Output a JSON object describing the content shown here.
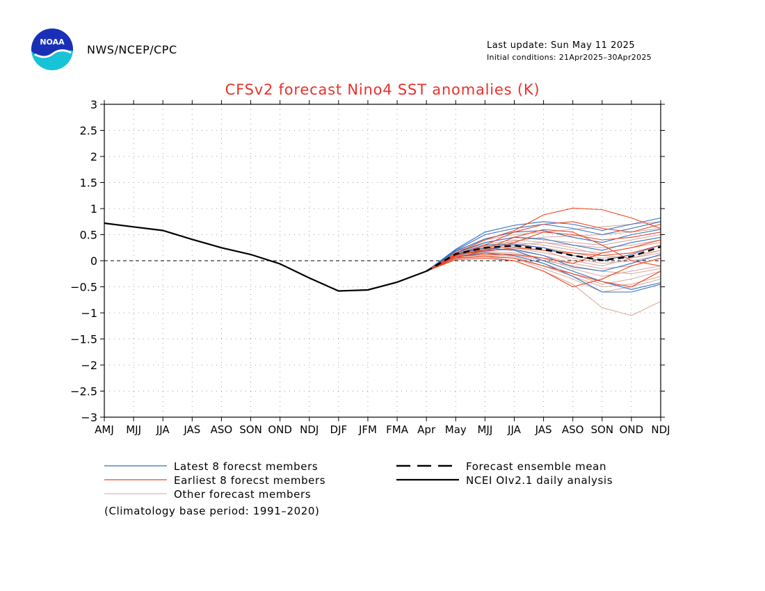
{
  "header": {
    "agency": "NWS/NCEP/CPC",
    "last_update": "Last update: Sun May 11 2025",
    "initial_conditions": "Initial conditions: 21Apr2025–30Apr2025",
    "logo_text": "NOAA"
  },
  "footnote": "(Climatology base period: 1991–2020)",
  "colors": {
    "title": "#e8312a",
    "latest": "#2f6fc0",
    "earliest": "#ee4422",
    "other": "#d9a59a",
    "observed": "#000000",
    "zero_line": "#000000",
    "grid": "#a0a0a0"
  },
  "chart_data": {
    "type": "line",
    "title": "CFSv2 forecast Nino4 SST anomalies (K)",
    "x_tick_labels": [
      "AMJ",
      "MJJ",
      "JJA",
      "JAS",
      "ASO",
      "SON",
      "OND",
      "NDJ",
      "DJF",
      "JFM",
      "FMA",
      "Apr",
      "May",
      "MJJ",
      "JJA",
      "JAS",
      "ASO",
      "SON",
      "OND",
      "NDJ"
    ],
    "y_ticks": [
      3,
      2.5,
      2,
      1.5,
      1,
      0.5,
      0,
      -0.5,
      -1,
      -1.5,
      -2,
      -2.5,
      -3
    ],
    "ylim": [
      -3,
      3
    ],
    "grid": true,
    "legend_placement": "below",
    "legend": {
      "latest": "Latest 8 forecst members",
      "earliest": "Earliest 8 forecst members",
      "other": "Other forecast members",
      "mean": "Forecast ensemble mean",
      "observed": "NCEI OIv2.1 daily analysis"
    },
    "observed": {
      "x": [
        0,
        1,
        2,
        3,
        4,
        5,
        6,
        7,
        8,
        9,
        10,
        11
      ],
      "values": [
        0.72,
        0.65,
        0.58,
        0.41,
        0.25,
        0.12,
        -0.06,
        -0.33,
        -0.58,
        -0.56,
        -0.41,
        -0.2
      ]
    },
    "ensemble_mean": {
      "x": [
        11,
        12,
        13,
        14,
        15,
        16,
        17,
        18,
        19
      ],
      "values": [
        -0.2,
        0.13,
        0.25,
        0.29,
        0.22,
        0.1,
        0.01,
        0.08,
        0.27
      ]
    },
    "forecast_x": [
      11,
      12,
      13,
      14,
      15,
      16,
      17,
      18,
      19
    ],
    "latest_members": [
      [
        -0.2,
        0.22,
        0.55,
        0.68,
        0.75,
        0.7,
        0.58,
        0.7,
        0.82
      ],
      [
        -0.2,
        0.2,
        0.5,
        0.62,
        0.7,
        0.62,
        0.5,
        0.62,
        0.75
      ],
      [
        -0.2,
        0.18,
        0.42,
        0.55,
        0.58,
        0.45,
        0.35,
        0.5,
        0.6
      ],
      [
        -0.2,
        0.15,
        0.35,
        0.45,
        0.42,
        0.3,
        0.2,
        0.35,
        0.45
      ],
      [
        -0.2,
        0.12,
        0.3,
        0.32,
        0.25,
        0.1,
        0.0,
        0.12,
        0.3
      ],
      [
        -0.2,
        0.1,
        0.2,
        0.22,
        0.1,
        -0.12,
        -0.2,
        -0.05,
        0.12
      ],
      [
        -0.2,
        0.08,
        0.15,
        0.1,
        -0.05,
        -0.3,
        -0.6,
        -0.6,
        -0.45
      ],
      [
        -0.2,
        0.12,
        0.25,
        0.2,
        0.0,
        -0.2,
        -0.4,
        -0.55,
        -0.42
      ]
    ],
    "earliest_members": [
      [
        -0.2,
        0.15,
        0.4,
        0.58,
        0.88,
        1.01,
        0.98,
        0.82,
        0.62
      ],
      [
        -0.2,
        0.1,
        0.3,
        0.55,
        0.7,
        0.75,
        0.62,
        0.55,
        0.7
      ],
      [
        -0.2,
        0.05,
        0.2,
        0.35,
        0.55,
        0.5,
        0.4,
        0.45,
        0.55
      ],
      [
        -0.2,
        0.12,
        0.18,
        0.25,
        0.2,
        0.15,
        0.1,
        0.15,
        0.3
      ],
      [
        -0.2,
        0.08,
        0.12,
        0.12,
        0.05,
        -0.05,
        0.15,
        0.25,
        0.4
      ],
      [
        -0.2,
        0.05,
        0.08,
        0.05,
        -0.1,
        -0.25,
        -0.4,
        -0.5,
        -0.2
      ],
      [
        -0.2,
        0.02,
        0.05,
        0.0,
        -0.2,
        -0.5,
        -0.35,
        -0.1,
        0.05
      ],
      [
        -0.2,
        0.1,
        0.22,
        0.45,
        0.6,
        0.55,
        0.3,
        0.0,
        -0.1
      ]
    ],
    "other_members": [
      [
        -0.2,
        0.2,
        0.4,
        0.5,
        0.55,
        0.6,
        0.65,
        0.7,
        0.75
      ],
      [
        -0.2,
        0.18,
        0.35,
        0.45,
        0.4,
        0.35,
        0.3,
        0.4,
        0.5
      ],
      [
        -0.2,
        0.15,
        0.3,
        0.35,
        0.3,
        0.2,
        0.15,
        0.25,
        0.35
      ],
      [
        -0.2,
        0.14,
        0.28,
        0.3,
        0.25,
        0.15,
        0.05,
        0.1,
        0.2
      ],
      [
        -0.2,
        0.12,
        0.25,
        0.25,
        0.15,
        0.05,
        -0.05,
        0.0,
        0.1
      ],
      [
        -0.2,
        0.1,
        0.22,
        0.2,
        0.1,
        -0.05,
        -0.15,
        -0.1,
        0.05
      ],
      [
        -0.2,
        0.08,
        0.18,
        0.15,
        0.05,
        -0.15,
        -0.3,
        -0.2,
        -0.1
      ],
      [
        -0.2,
        0.06,
        0.15,
        0.1,
        -0.05,
        -0.25,
        -0.45,
        -0.35,
        -0.2
      ],
      [
        -0.2,
        0.05,
        0.1,
        0.05,
        -0.15,
        -0.35,
        -0.6,
        -0.5,
        -0.35
      ],
      [
        -0.2,
        0.04,
        0.08,
        0.0,
        -0.2,
        -0.45,
        -0.9,
        -1.05,
        -0.78
      ],
      [
        -0.2,
        0.1,
        0.2,
        0.3,
        0.35,
        0.3,
        0.25,
        0.3,
        0.4
      ],
      [
        -0.2,
        0.12,
        0.26,
        0.38,
        0.45,
        0.48,
        0.5,
        0.55,
        0.62
      ],
      [
        -0.2,
        0.16,
        0.32,
        0.4,
        0.35,
        0.25,
        0.1,
        0.05,
        0.15
      ],
      [
        -0.2,
        0.09,
        0.16,
        0.12,
        0.0,
        -0.1,
        -0.2,
        -0.25,
        -0.15
      ],
      [
        -0.2,
        0.11,
        0.24,
        0.28,
        0.2,
        0.0,
        -0.1,
        0.05,
        0.2
      ],
      [
        -0.2,
        0.07,
        0.12,
        0.08,
        -0.1,
        -0.3,
        -0.5,
        -0.45,
        -0.3
      ]
    ]
  }
}
